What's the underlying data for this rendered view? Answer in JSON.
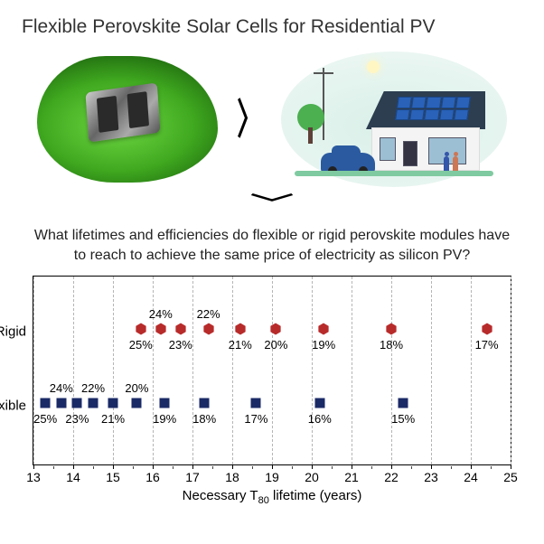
{
  "title": "Flexible Perovskite Solar Cells for Residential PV",
  "question": "What lifetimes and efficiencies do flexible or rigid perovskite modules have to reach to achieve the same price of electricity as silicon PV?",
  "chart": {
    "type": "scatter-categorical",
    "xlim": [
      13,
      25
    ],
    "xticks_major": [
      13,
      14,
      15,
      16,
      17,
      18,
      19,
      20,
      21,
      22,
      23,
      24,
      25
    ],
    "xticks_minor_step": 0.5,
    "xlabel_prefix": "Necessary T",
    "xlabel_sub": "80",
    "xlabel_suffix": " lifetime (years)",
    "background_color": "#ffffff",
    "grid_color": "#b5b5b5",
    "series": [
      {
        "name": "Rigid",
        "label": "Rigid",
        "marker": "hexagon",
        "color": "#b82b2b",
        "y_center_pct": 28,
        "points": [
          {
            "x": 15.7,
            "pct": "25%",
            "pos": "below"
          },
          {
            "x": 16.2,
            "pct": "24%",
            "pos": "above"
          },
          {
            "x": 16.7,
            "pct": "23%",
            "pos": "below"
          },
          {
            "x": 17.4,
            "pct": "22%",
            "pos": "above"
          },
          {
            "x": 18.2,
            "pct": "21%",
            "pos": "below"
          },
          {
            "x": 19.1,
            "pct": "20%",
            "pos": "below"
          },
          {
            "x": 20.3,
            "pct": "19%",
            "pos": "below"
          },
          {
            "x": 22.0,
            "pct": "18%",
            "pos": "below"
          },
          {
            "x": 24.4,
            "pct": "17%",
            "pos": "below"
          }
        ]
      },
      {
        "name": "Flexible",
        "label": "Flexible",
        "marker": "square",
        "color": "#1a2a66",
        "y_center_pct": 67,
        "points": [
          {
            "x": 13.3,
            "pct": "25%",
            "pos": "below"
          },
          {
            "x": 13.7,
            "pct": "24%",
            "pos": "above"
          },
          {
            "x": 14.1,
            "pct": "23%",
            "pos": "below"
          },
          {
            "x": 14.5,
            "pct": "22%",
            "pos": "above"
          },
          {
            "x": 15.0,
            "pct": "21%",
            "pos": "below"
          },
          {
            "x": 15.6,
            "pct": "20%",
            "pos": "above"
          },
          {
            "x": 16.3,
            "pct": "19%",
            "pos": "below"
          },
          {
            "x": 17.3,
            "pct": "18%",
            "pos": "below"
          },
          {
            "x": 18.6,
            "pct": "17%",
            "pos": "below"
          },
          {
            "x": 20.2,
            "pct": "16%",
            "pos": "below"
          },
          {
            "x": 22.3,
            "pct": "15%",
            "pos": "below"
          }
        ]
      }
    ]
  }
}
